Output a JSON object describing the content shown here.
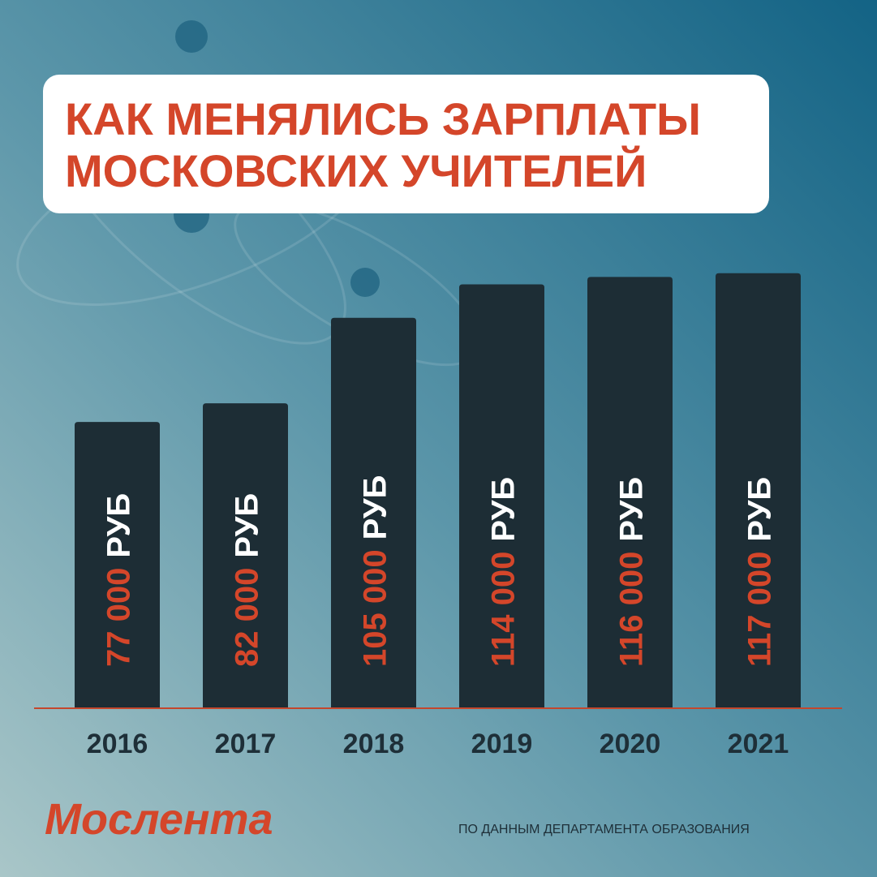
{
  "chart_data": {
    "type": "bar",
    "title": [
      "КАК МЕНЯЛИСЬ ЗАРПЛАТЫ",
      "МОСКОВСКИХ УЧИТЕЛЕЙ"
    ],
    "categories": [
      "2016",
      "2017",
      "2018",
      "2019",
      "2020",
      "2021"
    ],
    "values": [
      77000,
      82000,
      105000,
      114000,
      116000,
      117000
    ],
    "value_labels": [
      "77 000",
      "82 000",
      "105 000",
      "114 000",
      "116 000",
      "117 000"
    ],
    "unit": "РУБ",
    "color": "#1d2d35",
    "ylim": [
      0,
      120000
    ],
    "logo": "Мослента",
    "source": "ПО ДАННЫМ ДЕПАРТАМЕНТА ОБРАЗОВАНИЯ"
  }
}
